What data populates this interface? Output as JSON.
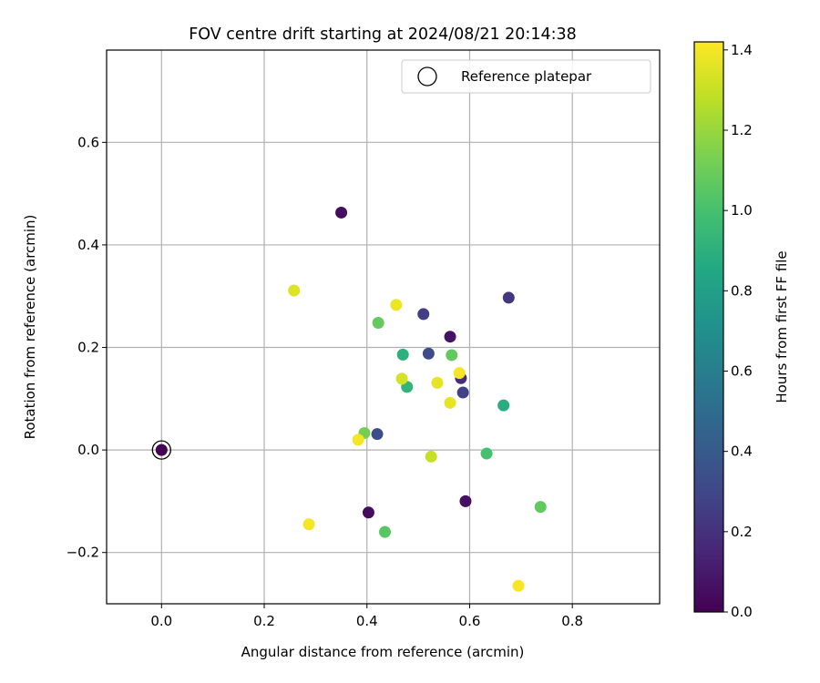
{
  "chart_data": {
    "type": "scatter",
    "title": "FOV centre drift starting at 2024/08/21 20:14:38",
    "xlabel": "Angular distance from reference (arcmin)",
    "ylabel": "Rotation from reference (arcmin)",
    "xlim": [
      -0.107,
      0.97
    ],
    "ylim": [
      -0.3,
      0.78
    ],
    "xticks": [
      0.0,
      0.2,
      0.4,
      0.6,
      0.8
    ],
    "xtick_labels": [
      "0.0",
      "0.2",
      "0.4",
      "0.6",
      "0.8"
    ],
    "yticks": [
      -0.2,
      0.0,
      0.2,
      0.4,
      0.6
    ],
    "ytick_labels": [
      "−0.2",
      "0.0",
      "0.2",
      "0.4",
      "0.6"
    ],
    "grid": true,
    "colormap": "viridis",
    "colorbar": {
      "label": "Hours from first FF file",
      "range": [
        0.0,
        1.42
      ],
      "ticks": [
        0.0,
        0.2,
        0.4,
        0.6,
        0.8,
        1.0,
        1.2,
        1.4
      ],
      "tick_labels": [
        "0.0",
        "0.2",
        "0.4",
        "0.6",
        "0.8",
        "1.0",
        "1.2",
        "1.4"
      ]
    },
    "legend": {
      "placement": "top-right",
      "entries": [
        "Reference platepar"
      ]
    },
    "reference": {
      "x": 0.0,
      "y": 0.0
    },
    "points": [
      {
        "x": 0.0,
        "y": 0.0,
        "hours": 0.0
      },
      {
        "x": 0.35,
        "y": 0.463,
        "hours": 0.05
      },
      {
        "x": 0.562,
        "y": 0.221,
        "hours": 0.07
      },
      {
        "x": 0.592,
        "y": -0.1,
        "hours": 0.06
      },
      {
        "x": 0.403,
        "y": -0.122,
        "hours": 0.04
      },
      {
        "x": 0.676,
        "y": 0.297,
        "hours": 0.22
      },
      {
        "x": 0.51,
        "y": 0.265,
        "hours": 0.26
      },
      {
        "x": 0.52,
        "y": 0.188,
        "hours": 0.32
      },
      {
        "x": 0.583,
        "y": 0.14,
        "hours": 0.18
      },
      {
        "x": 0.587,
        "y": 0.112,
        "hours": 0.27
      },
      {
        "x": 0.42,
        "y": 0.031,
        "hours": 0.33
      },
      {
        "x": 0.47,
        "y": 0.186,
        "hours": 0.9
      },
      {
        "x": 0.478,
        "y": 0.123,
        "hours": 0.92
      },
      {
        "x": 0.666,
        "y": 0.087,
        "hours": 0.88
      },
      {
        "x": 0.633,
        "y": -0.007,
        "hours": 1.0
      },
      {
        "x": 0.565,
        "y": 0.185,
        "hours": 1.07
      },
      {
        "x": 0.422,
        "y": 0.248,
        "hours": 1.08
      },
      {
        "x": 0.395,
        "y": 0.033,
        "hours": 1.12
      },
      {
        "x": 0.435,
        "y": -0.16,
        "hours": 1.05
      },
      {
        "x": 0.738,
        "y": -0.111,
        "hours": 1.07
      },
      {
        "x": 0.258,
        "y": 0.311,
        "hours": 1.35
      },
      {
        "x": 0.457,
        "y": 0.283,
        "hours": 1.38
      },
      {
        "x": 0.468,
        "y": 0.139,
        "hours": 1.33
      },
      {
        "x": 0.537,
        "y": 0.131,
        "hours": 1.37
      },
      {
        "x": 0.58,
        "y": 0.15,
        "hours": 1.4
      },
      {
        "x": 0.562,
        "y": 0.092,
        "hours": 1.37
      },
      {
        "x": 0.383,
        "y": 0.02,
        "hours": 1.4
      },
      {
        "x": 0.525,
        "y": -0.013,
        "hours": 1.3
      },
      {
        "x": 0.287,
        "y": -0.145,
        "hours": 1.4
      },
      {
        "x": 0.695,
        "y": -0.265,
        "hours": 1.41
      }
    ]
  }
}
